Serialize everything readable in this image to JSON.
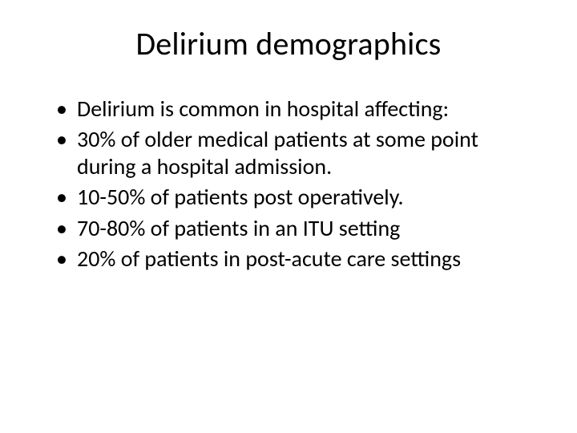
{
  "slide": {
    "title": "Delirium demographics",
    "title_fontsize": 40,
    "title_color": "#000000",
    "title_align": "center",
    "background_color": "#ffffff",
    "body_fontsize": 28,
    "body_color": "#000000",
    "bullets": [
      "Delirium is common in hospital affecting:",
      "30% of older medical patients at some point during a hospital admission.",
      "10-50% of patients post operatively.",
      "70-80% of patients in an ITU setting",
      "20% of patients in post-acute care settings"
    ]
  }
}
